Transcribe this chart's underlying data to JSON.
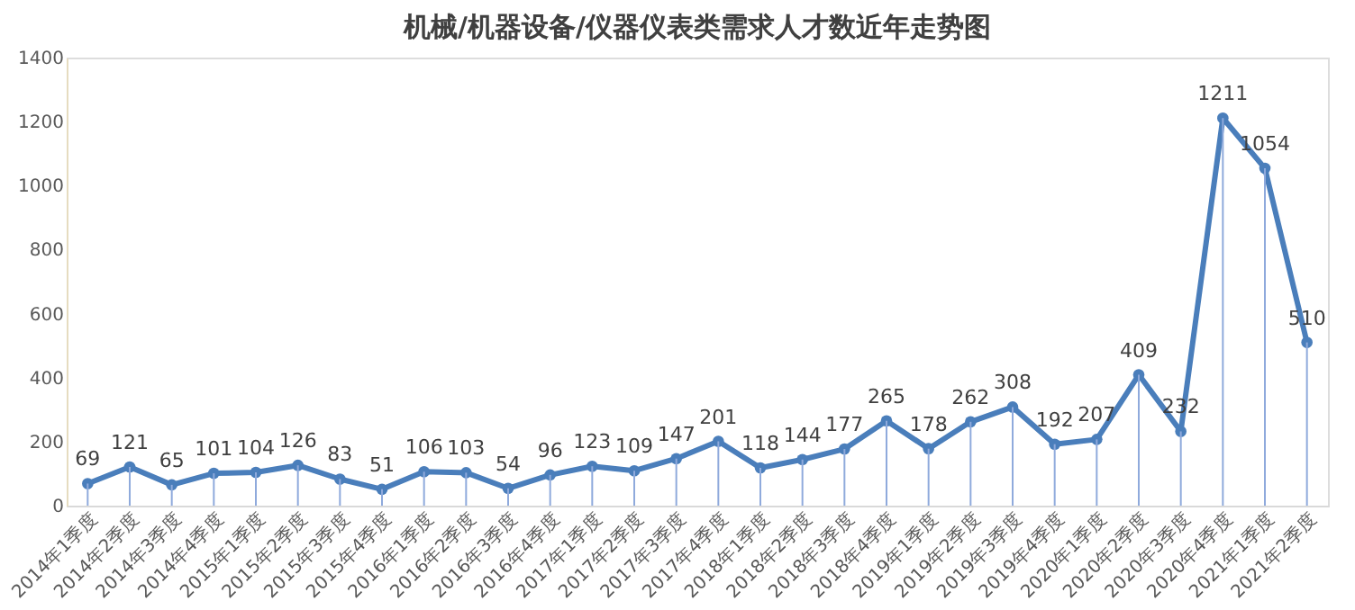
{
  "chart_data": {
    "type": "line",
    "title": "机械/机器设备/仪器仪表类需求人才数近年走势图",
    "categories": [
      "2014年1季度",
      "2014年2季度",
      "2014年3季度",
      "2014年4季度",
      "2015年1季度",
      "2015年2季度",
      "2015年3季度",
      "2015年4季度",
      "2016年1季度",
      "2016年2季度",
      "2016年3季度",
      "2016年4季度",
      "2017年1季度",
      "2017年2季度",
      "2017年3季度",
      "2017年4季度",
      "2018年1季度",
      "2018年2季度",
      "2018年3季度",
      "2018年4季度",
      "2019年1季度",
      "2019年2季度",
      "2019年3季度",
      "2019年4季度",
      "2020年1季度",
      "2020年2季度",
      "2020年3季度",
      "2020年4季度",
      "2021年1季度",
      "2021年2季度"
    ],
    "series": [
      {
        "color": "#4a7ebb",
        "values": [
          69,
          121,
          65,
          101,
          104,
          126,
          83,
          51,
          106,
          103,
          54,
          96,
          123,
          109,
          147,
          201,
          118,
          144,
          177,
          265,
          178,
          262,
          308,
          192,
          207,
          409,
          232,
          1211,
          1054,
          510
        ]
      }
    ],
    "ylim": [
      0,
      1400
    ],
    "yticks": [
      0,
      200,
      400,
      600,
      800,
      1000,
      1200,
      1400
    ],
    "data_labels": true,
    "marker": "circle",
    "line_style": "solid",
    "grid": "x",
    "legend": false
  }
}
